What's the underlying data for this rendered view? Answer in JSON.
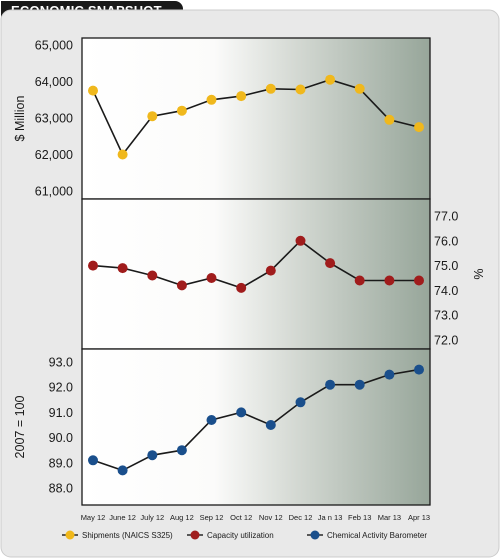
{
  "title": "ECONOMIC SNAPSHOT",
  "chart_data": {
    "type": "line",
    "categories": [
      "May 12",
      "June 12",
      "July 12",
      "Aug 12",
      "Sep 12",
      "Oct 12",
      "Nov 12",
      "Dec 12",
      "Ja n 13",
      "Feb 13",
      "Mar 13",
      "Apr 13"
    ],
    "panels": [
      {
        "series_key": "shipments",
        "ylabel": "$ Million",
        "axis_side": "left",
        "ylim": [
          61000,
          65000
        ],
        "ticks": [
          "65,000",
          "64,000",
          "63,000",
          "62,000",
          "61,000"
        ],
        "tick_values": [
          65000,
          64000,
          63000,
          62000,
          61000
        ],
        "color": "#f0b81c"
      },
      {
        "series_key": "capacity",
        "ylabel": "%",
        "axis_side": "right",
        "ylim": [
          72,
          77
        ],
        "ticks": [
          "77.0",
          "76.0",
          "75.0",
          "74.0",
          "73.0",
          "72.0"
        ],
        "tick_values": [
          77,
          76,
          75,
          74,
          73,
          72
        ],
        "color": "#a01c1c"
      },
      {
        "series_key": "cab",
        "ylabel": "2007 = 100",
        "axis_side": "left",
        "ylim": [
          88,
          93
        ],
        "ticks": [
          "93.0",
          "92.0",
          "91.0",
          "90.0",
          "89.0",
          "88.0"
        ],
        "tick_values": [
          93,
          92,
          91,
          90,
          89,
          88
        ],
        "color": "#1a4f8c"
      }
    ],
    "series": [
      {
        "key": "shipments",
        "name": "Shipments (NAICS S325)",
        "values": [
          63750,
          62000,
          63050,
          63200,
          63500,
          63600,
          63800,
          63780,
          64050,
          63800,
          62950,
          62750
        ]
      },
      {
        "key": "capacity",
        "name": "Capacity utilization",
        "values": [
          75.0,
          74.9,
          74.6,
          74.2,
          74.5,
          74.1,
          74.8,
          76.0,
          75.1,
          74.4,
          74.4,
          74.4
        ]
      },
      {
        "key": "cab",
        "name": "Chemical Activity Barometer",
        "values": [
          89.1,
          88.7,
          89.3,
          89.5,
          90.7,
          91.0,
          90.5,
          91.4,
          92.1,
          92.1,
          92.5,
          92.7
        ]
      }
    ],
    "legend_position": "bottom",
    "grid": false
  }
}
